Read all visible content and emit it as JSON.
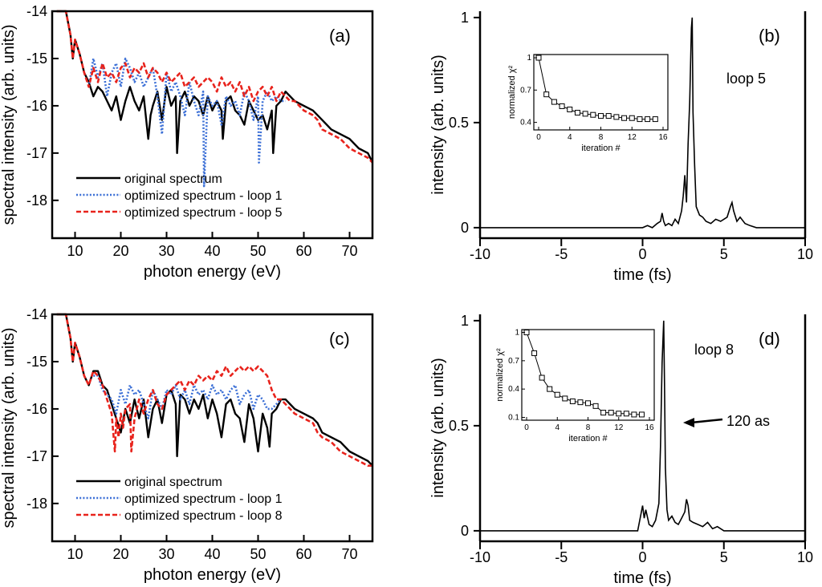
{
  "chart_data": [
    {
      "type": "line",
      "panel_label": "(a)",
      "xlabel": "photon energy (eV)",
      "ylabel": "spectral intensity (arb. units)",
      "xlim": [
        5,
        75
      ],
      "ylim": [
        -18.8,
        -14
      ],
      "xticks": [
        "10",
        "20",
        "30",
        "40",
        "50",
        "60",
        "70"
      ],
      "yticks": [
        "-14",
        "-15",
        "-16",
        "-17",
        "-18"
      ],
      "legend": [
        "original spectrum",
        "optimized spectrum - loop 1",
        "optimized spectrum - loop 5"
      ],
      "series": [
        {
          "name": "original spectrum",
          "color": "#000000",
          "x": [
            6,
            8,
            9,
            9.5,
            10,
            11,
            12,
            13,
            14,
            15,
            16,
            17,
            18,
            19,
            20,
            21,
            22,
            23,
            24,
            25,
            26,
            26.5,
            27,
            28,
            29,
            30,
            31,
            32,
            32.3,
            33,
            34,
            35,
            36,
            37,
            38,
            39,
            40,
            41,
            42,
            42.3,
            43,
            44,
            45,
            46,
            47,
            48,
            49,
            50,
            51,
            52,
            53,
            53.3,
            54,
            55,
            56,
            57,
            58,
            60,
            62,
            63,
            64,
            66,
            68,
            70,
            72,
            74,
            75
          ],
          "y": [
            -14,
            -14,
            -14.5,
            -15,
            -14.6,
            -14.9,
            -15.3,
            -15.5,
            -15.8,
            -15.6,
            -15.7,
            -15.9,
            -16.1,
            -15.8,
            -16.3,
            -15.9,
            -15.6,
            -15.9,
            -16.1,
            -15.8,
            -16.7,
            -16.2,
            -16,
            -15.7,
            -16.3,
            -15.6,
            -16,
            -15.8,
            -17,
            -15.9,
            -15.7,
            -16,
            -15.8,
            -15.9,
            -16.2,
            -15.8,
            -16.1,
            -15.9,
            -16.1,
            -16.7,
            -15.9,
            -15.8,
            -16.1,
            -16.2,
            -16.4,
            -15.9,
            -16.1,
            -16.3,
            -16.2,
            -16.5,
            -16.1,
            -17,
            -16,
            -15.9,
            -15.7,
            -15.8,
            -15.9,
            -16,
            -16.1,
            -16.2,
            -16.3,
            -16.5,
            -16.6,
            -16.7,
            -16.9,
            -17,
            -17.2
          ]
        },
        {
          "name": "optimized spectrum - loop 1",
          "color": "#3b6fd6",
          "x": [
            13,
            14,
            15,
            16,
            17,
            18,
            19,
            20,
            21,
            22,
            23,
            24,
            25,
            26,
            27,
            28,
            29,
            30,
            31,
            32,
            33,
            34,
            35,
            36,
            37,
            38,
            38.2,
            39,
            40,
            41,
            42,
            43,
            44,
            45,
            46,
            47,
            48,
            49,
            50,
            50.2,
            51,
            52,
            53,
            54,
            55,
            56
          ],
          "y": [
            -15.6,
            -15,
            -15.4,
            -15.1,
            -15.8,
            -15.3,
            -15.1,
            -15.6,
            -15,
            -15.2,
            -15.5,
            -15.3,
            -15.6,
            -15.4,
            -15.2,
            -15.8,
            -16.6,
            -15.3,
            -15.7,
            -15.5,
            -15.8,
            -16.2,
            -15.5,
            -15.9,
            -16.2,
            -15.7,
            -17.7,
            -15.8,
            -16,
            -15.9,
            -16.4,
            -15.8,
            -16,
            -15.9,
            -16.2,
            -15.7,
            -15.9,
            -16.3,
            -15.8,
            -17.2,
            -15.9,
            -15.7,
            -15.9,
            -15.8,
            -15.9,
            -15.9
          ]
        },
        {
          "name": "optimized spectrum - loop 5",
          "color": "#e8231c",
          "x": [
            6,
            8,
            9,
            9.5,
            10,
            11,
            12,
            13,
            14,
            15,
            16,
            17,
            18,
            19,
            20,
            21,
            22,
            23,
            24,
            25,
            26,
            27,
            28,
            29,
            30,
            31,
            32,
            33,
            34,
            35,
            36,
            37,
            38,
            39,
            40,
            41,
            42,
            43,
            44,
            45,
            46,
            47,
            48,
            49,
            50,
            51,
            52,
            53,
            54,
            55,
            56,
            57,
            58,
            60,
            62,
            63,
            64,
            66,
            68,
            70,
            72,
            74,
            75
          ],
          "y": [
            -14,
            -14,
            -14.5,
            -15,
            -14.6,
            -14.9,
            -15.3,
            -15.6,
            -15.2,
            -15.5,
            -15.1,
            -15.4,
            -15.3,
            -15.5,
            -15.2,
            -15.1,
            -15.4,
            -15.2,
            -15.3,
            -15.1,
            -15.4,
            -15.2,
            -15.3,
            -15.5,
            -15.3,
            -15.5,
            -15.4,
            -15.3,
            -15.6,
            -15.5,
            -15.4,
            -15.6,
            -15.5,
            -15.4,
            -15.5,
            -15.7,
            -15.4,
            -15.6,
            -15.5,
            -15.7,
            -15.5,
            -15.8,
            -15.6,
            -15.9,
            -15.7,
            -15.6,
            -15.8,
            -15.6,
            -15.9,
            -15.7,
            -15.8,
            -15.9,
            -15.9,
            -16.1,
            -16.2,
            -16.3,
            -16.5,
            -16.6,
            -16.7,
            -16.9,
            -17,
            -17.1,
            -17.2
          ]
        }
      ]
    },
    {
      "type": "line",
      "panel_label": "(b)",
      "xlabel": "time (fs)",
      "ylabel": "intensity (arb. units)",
      "xlim": [
        -10,
        10
      ],
      "ylim": [
        -0.05,
        1.03
      ],
      "xticks": [
        "-10",
        "-5",
        "0",
        "5",
        "10"
      ],
      "yticks": [
        "0",
        "0.5",
        "1"
      ],
      "annotation": "loop 5",
      "series": [
        {
          "name": "intensity",
          "color": "#000000",
          "x": [
            -10,
            0,
            0.3,
            0.6,
            0.9,
            1.1,
            1.2,
            1.3,
            1.4,
            1.6,
            1.8,
            2,
            2.2,
            2.4,
            2.5,
            2.6,
            2.7,
            2.8,
            2.9,
            3,
            3.05,
            3.1,
            3.2,
            3.3,
            3.5,
            3.7,
            3.9,
            4.2,
            4.5,
            4.8,
            5.2,
            5.4,
            5.5,
            5.6,
            5.8,
            6,
            6.3,
            6.6,
            7,
            10
          ],
          "y": [
            0,
            0,
            0.01,
            0,
            0.02,
            0.03,
            0.07,
            0.03,
            0.01,
            0.02,
            0.01,
            0.04,
            0.02,
            0.08,
            0.15,
            0.25,
            0.12,
            0.4,
            0.6,
            0.95,
            1,
            0.55,
            0.3,
            0.1,
            0.06,
            0.05,
            0.03,
            0.02,
            0.04,
            0.03,
            0.05,
            0.1,
            0.12,
            0.08,
            0.03,
            0.05,
            0.02,
            0.01,
            0,
            0
          ]
        }
      ],
      "inset": {
        "xlabel": "iteration #",
        "ylabel": "normalized χ²",
        "xlim": [
          0,
          16
        ],
        "ylim": [
          0.33,
          1.03
        ],
        "xticks": [
          "0",
          "4",
          "8",
          "12",
          "16"
        ],
        "yticks": [
          "1",
          "0.7",
          "0.4"
        ],
        "x": [
          0,
          1,
          2,
          3,
          4,
          5,
          6,
          7,
          8,
          9,
          10,
          11,
          12,
          13,
          14,
          15
        ],
        "y": [
          1,
          0.66,
          0.59,
          0.55,
          0.52,
          0.49,
          0.48,
          0.47,
          0.46,
          0.46,
          0.45,
          0.44,
          0.44,
          0.43,
          0.43,
          0.43
        ]
      }
    },
    {
      "type": "line",
      "panel_label": "(c)",
      "xlabel": "photon energy (eV)",
      "ylabel": "spectral intensity (arb. units)",
      "xlim": [
        5,
        75
      ],
      "ylim": [
        -18.8,
        -14
      ],
      "xticks": [
        "10",
        "20",
        "30",
        "40",
        "50",
        "60",
        "70"
      ],
      "yticks": [
        "-14",
        "-15",
        "-16",
        "-17",
        "-18"
      ],
      "legend": [
        "original spectrum",
        "optimized spectrum - loop 1",
        "optimized spectrum - loop 8"
      ],
      "series": [
        {
          "name": "original spectrum",
          "color": "#000000",
          "x": [
            6,
            8,
            9,
            9.5,
            10,
            11,
            12,
            13,
            14,
            15,
            16,
            17,
            18,
            19,
            20,
            21,
            22,
            23,
            24,
            25,
            26,
            27,
            28,
            29,
            30,
            31,
            32,
            32.3,
            33,
            34,
            35,
            36,
            37,
            38,
            39,
            40,
            41,
            42,
            43,
            44,
            45,
            46,
            47,
            48,
            49,
            50,
            51,
            52,
            52.5,
            53,
            54,
            55,
            56,
            57,
            58,
            60,
            62,
            63,
            64,
            66,
            68,
            70,
            72,
            74,
            75
          ],
          "y": [
            -14,
            -14,
            -14.5,
            -15,
            -14.6,
            -14.9,
            -15.3,
            -15.5,
            -15.2,
            -15.2,
            -15.5,
            -15.6,
            -15.9,
            -16.2,
            -16.5,
            -16,
            -16.3,
            -15.8,
            -16.2,
            -15.8,
            -16.6,
            -16,
            -15.8,
            -16.3,
            -15.7,
            -15.6,
            -15.9,
            -17,
            -15.7,
            -15.8,
            -16.1,
            -15.8,
            -16,
            -15.7,
            -16.2,
            -15.8,
            -16.1,
            -16.6,
            -15.9,
            -15.8,
            -16.1,
            -16.2,
            -16.7,
            -15.9,
            -16.2,
            -16.9,
            -16.1,
            -16.4,
            -16.8,
            -16.1,
            -16,
            -15.8,
            -15.8,
            -15.9,
            -16,
            -16.1,
            -16.2,
            -16.3,
            -16.5,
            -16.6,
            -16.7,
            -16.9,
            -17,
            -17.1,
            -17.2
          ]
        },
        {
          "name": "optimized spectrum - loop 1",
          "color": "#3b6fd6",
          "x": [
            14,
            15,
            16,
            17,
            18,
            19,
            20,
            21,
            22,
            23,
            24,
            25,
            26,
            27,
            28,
            29,
            30,
            31,
            32,
            33,
            34,
            35,
            36,
            37,
            38,
            39,
            40,
            41,
            42,
            43,
            44,
            45,
            46,
            47,
            48,
            49,
            50,
            51,
            52,
            53,
            54,
            55
          ],
          "y": [
            -15.3,
            -15.3,
            -15.6,
            -15.7,
            -15.8,
            -16.1,
            -15.6,
            -15.9,
            -15.5,
            -15.7,
            -15.6,
            -15.9,
            -16.2,
            -15.6,
            -15.8,
            -16,
            -15.6,
            -15.7,
            -15.5,
            -15.8,
            -15.6,
            -15.9,
            -15.5,
            -15.7,
            -15.6,
            -15.8,
            -15.5,
            -15.7,
            -15.6,
            -15.8,
            -15.6,
            -15.5,
            -15.9,
            -15.7,
            -15.6,
            -16,
            -15.7,
            -15.8,
            -16,
            -16,
            -15.9,
            -15.8
          ]
        },
        {
          "name": "optimized spectrum - loop 8",
          "color": "#e8231c",
          "x": [
            6,
            8,
            9,
            9.5,
            10,
            11,
            12,
            13,
            14,
            15,
            16,
            17,
            18,
            18.7,
            19,
            19.5,
            20,
            20.5,
            21,
            22,
            22.3,
            23,
            24,
            25,
            26,
            27,
            28,
            29,
            30,
            31,
            32,
            33,
            34,
            35,
            36,
            37,
            38,
            39,
            40,
            41,
            42,
            43,
            44,
            45,
            46,
            47,
            48,
            49,
            50,
            51,
            52,
            53,
            54,
            55,
            56,
            57,
            58,
            60,
            62,
            63,
            64,
            66,
            68,
            70,
            72,
            74,
            75
          ],
          "y": [
            -14,
            -14,
            -14.5,
            -15,
            -14.6,
            -14.9,
            -15.3,
            -15.5,
            -15.2,
            -15.3,
            -15.5,
            -15.8,
            -16.1,
            -16.9,
            -16.2,
            -16.6,
            -16.1,
            -16.4,
            -16,
            -15.9,
            -16.9,
            -16.2,
            -15.8,
            -16.1,
            -15.8,
            -15.6,
            -15.9,
            -16,
            -15.7,
            -15.6,
            -15.5,
            -15.4,
            -15.6,
            -15.4,
            -15.5,
            -15.3,
            -15.4,
            -15.3,
            -15.4,
            -15.2,
            -15.3,
            -15.1,
            -15.3,
            -15.2,
            -15.1,
            -15.2,
            -15.1,
            -15.2,
            -15.1,
            -15.2,
            -15.3,
            -15.6,
            -15.8,
            -15.8,
            -15.9,
            -16,
            -16.1,
            -16.2,
            -16.3,
            -16.5,
            -16.6,
            -16.7,
            -16.9,
            -17,
            -17.1,
            -17.2,
            -17.2
          ]
        }
      ]
    },
    {
      "type": "line",
      "panel_label": "(d)",
      "xlabel": "time (fs)",
      "ylabel": "intensity (arb. units)",
      "xlim": [
        -10,
        10
      ],
      "ylim": [
        -0.05,
        1.03
      ],
      "xticks": [
        "-10",
        "-5",
        "0",
        "5",
        "10"
      ],
      "yticks": [
        "0",
        "0.5",
        "1"
      ],
      "annotation": "loop 8",
      "arrow_label": "120 as",
      "series": [
        {
          "name": "intensity",
          "color": "#000000",
          "x": [
            -10,
            -0.3,
            -0.1,
            0,
            0.1,
            0.2,
            0.4,
            0.6,
            0.8,
            1,
            1.1,
            1.2,
            1.3,
            1.35,
            1.4,
            1.5,
            1.6,
            1.8,
            2,
            2.2,
            2.4,
            2.6,
            2.7,
            2.8,
            2.9,
            3.1,
            3.4,
            3.7,
            4,
            4.3,
            4.6,
            5,
            10
          ],
          "y": [
            0,
            0,
            0.08,
            0.12,
            0.06,
            0.1,
            0.03,
            0.02,
            0.05,
            0.13,
            0.4,
            0.8,
            1,
            0.7,
            0.3,
            0.1,
            0.05,
            0.07,
            0.04,
            0.03,
            0.06,
            0.09,
            0.15,
            0.12,
            0.05,
            0.04,
            0.03,
            0.02,
            0.04,
            0.01,
            0.02,
            0,
            0
          ]
        }
      ],
      "inset": {
        "xlabel": "iteration #",
        "ylabel": "normalized χ²",
        "xlim": [
          0,
          16
        ],
        "ylim": [
          0.07,
          1.03
        ],
        "xticks": [
          "0",
          "4",
          "8",
          "12",
          "16"
        ],
        "yticks": [
          "1",
          "0.7",
          "0.4",
          "0.1"
        ],
        "x": [
          0,
          1,
          2,
          3,
          4,
          5,
          6,
          7,
          8,
          9,
          10,
          11,
          12,
          13,
          14,
          15
        ],
        "y": [
          1,
          0.78,
          0.52,
          0.4,
          0.34,
          0.3,
          0.27,
          0.26,
          0.25,
          0.22,
          0.15,
          0.15,
          0.14,
          0.14,
          0.13,
          0.13
        ]
      }
    }
  ]
}
